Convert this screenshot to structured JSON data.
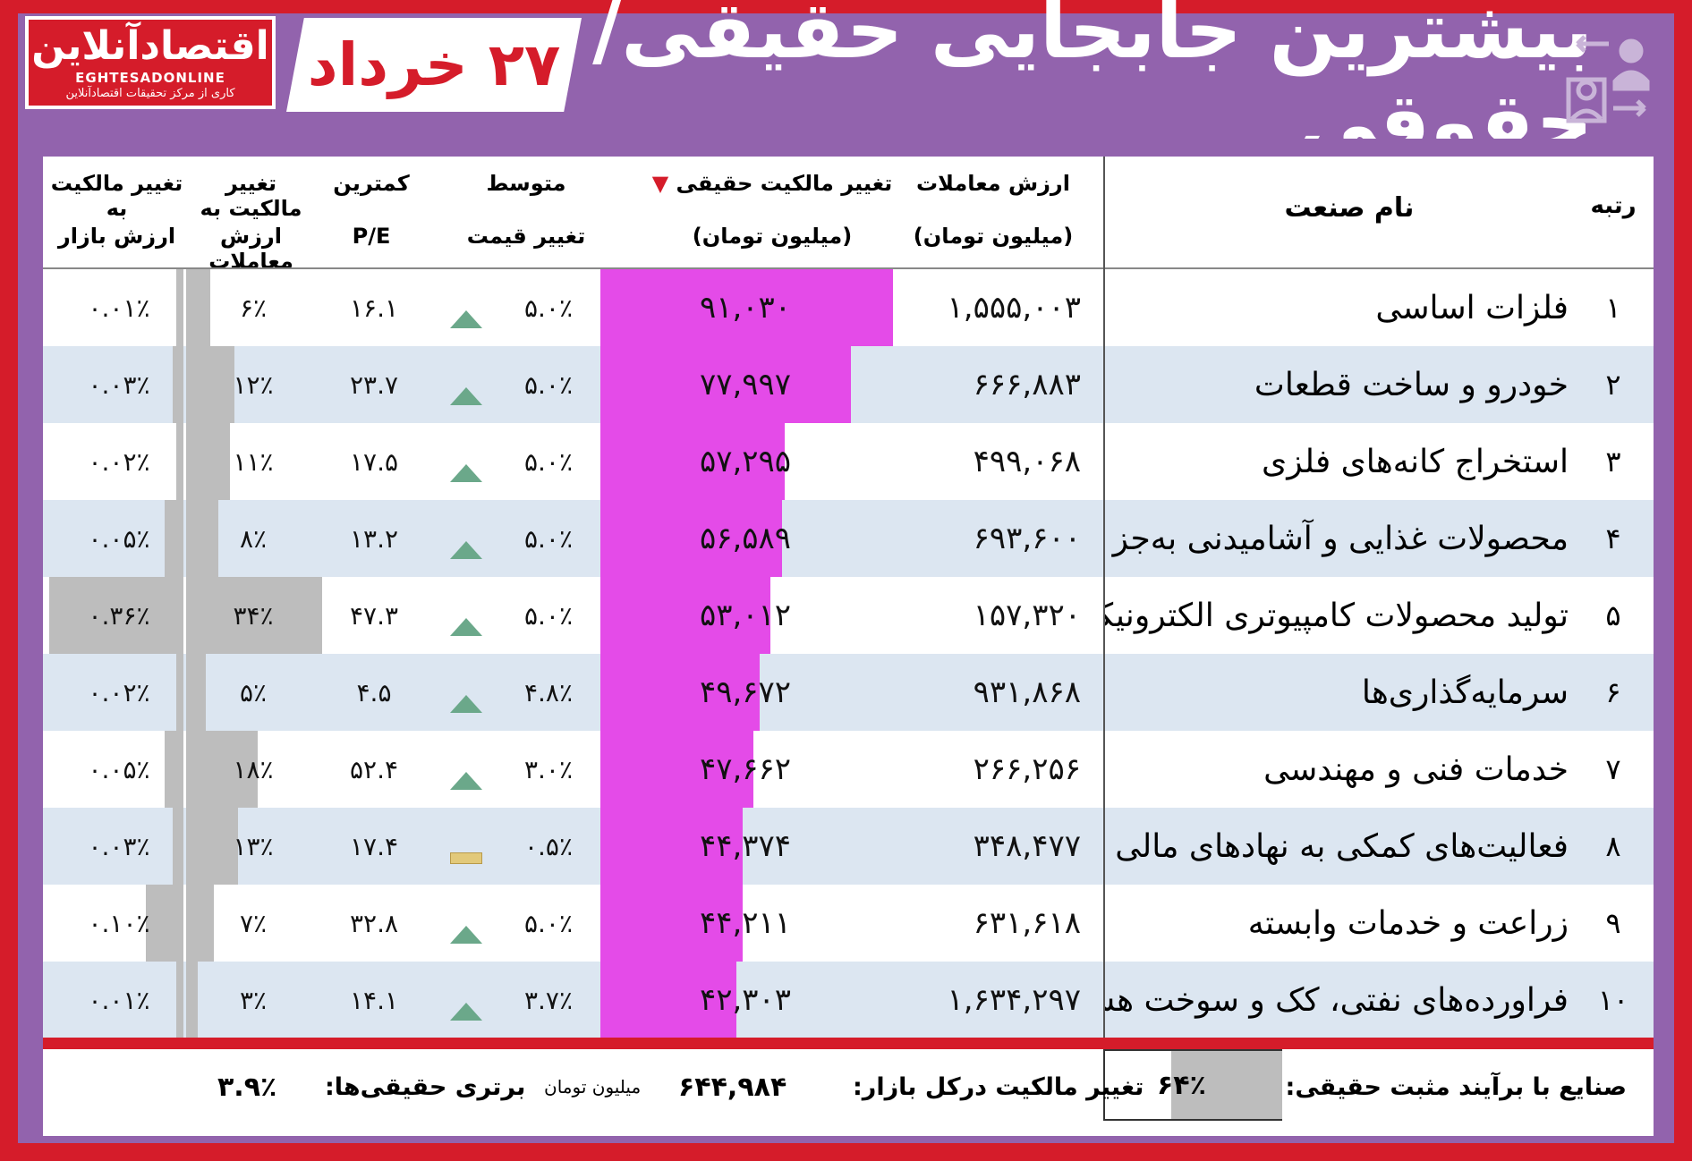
{
  "header": {
    "title": "بیشترین جابجایی حقیقی/حقوقی",
    "date": "۲۷ خرداد",
    "logo": {
      "name": "اقتصادآنلاین",
      "latin": "EGHTESADONLINE",
      "tagline": "کاری از مرکز تحقیقات اقتصادآنلاین"
    },
    "icon": "people-transfer-icon"
  },
  "columns": {
    "rank": "رتبه",
    "industry": "نام صنعت",
    "trade_value": "ارزش معاملات",
    "trade_value_unit": "(میلیون تومان)",
    "real_change": "تغییر مالکیت حقیقی",
    "real_change_unit": "(میلیون تومان)",
    "avg_price_1": "متوسط",
    "avg_price_2": "تغییر قیمت",
    "min_pe_1": "کمترین",
    "min_pe_2": "P/E",
    "own_trade_1": "تغییر مالکیت به",
    "own_trade_2": "ارزش معاملات",
    "own_mkt_1": "تغییر مالکیت به",
    "own_mkt_2": "ارزش بازار"
  },
  "colors": {
    "frame": "#d51c2a",
    "header_bg": "#9263ad",
    "real_bar": "#e44be8",
    "ratio_bar": "#bdbdbd",
    "row_alt": "#dce6f1",
    "up": "#6ba88a",
    "flat": "#e2c97a"
  },
  "chart_data": {
    "type": "table",
    "rows": [
      {
        "rank": "۱",
        "name": "فلزات اساسی",
        "trade_value": "۱,۵۵۵,۰۰۳",
        "real_change": "۹۱,۰۳۰",
        "real_change_value": 91030,
        "avg_price": "۵.۰٪",
        "trend": "up",
        "pe": "۱۶.۱",
        "own_trade": "۶٪",
        "own_trade_value": 6,
        "own_mkt": "۰.۰۱٪",
        "own_mkt_value": 0.01
      },
      {
        "rank": "۲",
        "name": "خودرو و ساخت قطعات",
        "trade_value": "۶۶۶,۸۸۳",
        "real_change": "۷۷,۹۹۷",
        "real_change_value": 77997,
        "avg_price": "۵.۰٪",
        "trend": "up",
        "pe": "۲۳.۷",
        "own_trade": "۱۲٪",
        "own_trade_value": 12,
        "own_mkt": "۰.۰۳٪",
        "own_mkt_value": 0.03
      },
      {
        "rank": "۳",
        "name": "استخراج کانه‌های فلزی",
        "trade_value": "۴۹۹,۰۶۸",
        "real_change": "۵۷,۲۹۵",
        "real_change_value": 57295,
        "avg_price": "۵.۰٪",
        "trend": "up",
        "pe": "۱۷.۵",
        "own_trade": "۱۱٪",
        "own_trade_value": 11,
        "own_mkt": "۰.۰۲٪",
        "own_mkt_value": 0.02
      },
      {
        "rank": "۴",
        "name": "محصولات غذایی و آشامیدنی به‌جز قند و شکر",
        "trade_value": "۶۹۳,۶۰۰",
        "real_change": "۵۶,۵۸۹",
        "real_change_value": 56589,
        "avg_price": "۵.۰٪",
        "trend": "up",
        "pe": "۱۳.۲",
        "own_trade": "۸٪",
        "own_trade_value": 8,
        "own_mkt": "۰.۰۵٪",
        "own_mkt_value": 0.05
      },
      {
        "rank": "۵",
        "name": "تولید محصولات کامپیوتری الکترونیکی و نوری",
        "trade_value": "۱۵۷,۳۲۰",
        "real_change": "۵۳,۰۱۲",
        "real_change_value": 53012,
        "avg_price": "۵.۰٪",
        "trend": "up",
        "pe": "۴۷.۳",
        "own_trade": "۳۴٪",
        "own_trade_value": 34,
        "own_mkt": "۰.۳۶٪",
        "own_mkt_value": 0.36
      },
      {
        "rank": "۶",
        "name": "سرمایه‌گذاری‌ها",
        "trade_value": "۹۳۱,۸۶۸",
        "real_change": "۴۹,۶۷۲",
        "real_change_value": 49672,
        "avg_price": "۴.۸٪",
        "trend": "up",
        "pe": "۴.۵",
        "own_trade": "۵٪",
        "own_trade_value": 5,
        "own_mkt": "۰.۰۲٪",
        "own_mkt_value": 0.02
      },
      {
        "rank": "۷",
        "name": "خدمات فنی و مهندسی",
        "trade_value": "۲۶۶,۲۵۶",
        "real_change": "۴۷,۶۶۲",
        "real_change_value": 47662,
        "avg_price": "۳.۰٪",
        "trend": "up",
        "pe": "۵۲.۴",
        "own_trade": "۱۸٪",
        "own_trade_value": 18,
        "own_mkt": "۰.۰۵٪",
        "own_mkt_value": 0.05
      },
      {
        "rank": "۸",
        "name": "فعالیت‌های کمکی به نهادهای مالی",
        "trade_value": "۳۴۸,۴۷۷",
        "real_change": "۴۴,۳۷۴",
        "real_change_value": 44374,
        "avg_price": "۰.۵٪",
        "trend": "flat",
        "pe": "۱۷.۴",
        "own_trade": "۱۳٪",
        "own_trade_value": 13,
        "own_mkt": "۰.۰۳٪",
        "own_mkt_value": 0.03
      },
      {
        "rank": "۹",
        "name": "زراعت و خدمات وابسته",
        "trade_value": "۶۳۱,۶۱۸",
        "real_change": "۴۴,۲۱۱",
        "real_change_value": 44211,
        "avg_price": "۵.۰٪",
        "trend": "up",
        "pe": "۳۲.۸",
        "own_trade": "۷٪",
        "own_trade_value": 7,
        "own_mkt": "۰.۱۰٪",
        "own_mkt_value": 0.1
      },
      {
        "rank": "۱۰",
        "name": "فراورده‌های نفتی، کک و سوخت هسته‌ای",
        "trade_value": "۱,۶۳۴,۲۹۷",
        "real_change": "۴۲,۳۰۳",
        "real_change_value": 42303,
        "avg_price": "۳.۷٪",
        "trend": "up",
        "pe": "۱۴.۱",
        "own_trade": "۳٪",
        "own_trade_value": 3,
        "own_mkt": "۰.۰۱٪",
        "own_mkt_value": 0.01
      }
    ]
  },
  "footer": {
    "positive_label": "صنایع با برآیند مثبت حقیقی:",
    "positive_value": "۶۴٪",
    "total_label": "تغییر مالکیت درکل بازار:",
    "total_value": "۶۴۴,۹۸۴",
    "total_unit": "میلیون تومان",
    "advantage_label": "برتری حقیقی‌ها:",
    "advantage_value": "۳.۹٪"
  }
}
